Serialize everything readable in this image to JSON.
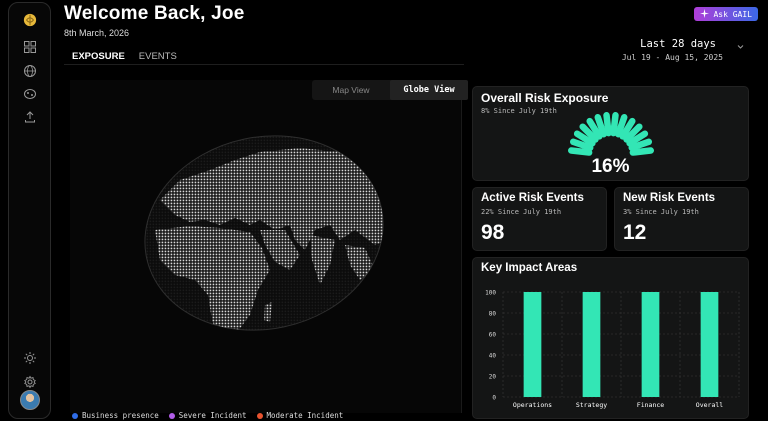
{
  "colors": {
    "accent": "#33e6b5",
    "background": "#000000",
    "card": "#141515"
  },
  "sidebar": {
    "logo_icon": "brain-logo-icon",
    "items": [
      {
        "icon": "grid-icon"
      },
      {
        "icon": "globe-icon"
      },
      {
        "icon": "network-icon"
      },
      {
        "icon": "upload-icon"
      }
    ],
    "bottom_items": [
      {
        "icon": "sun-icon"
      },
      {
        "icon": "gear-icon"
      }
    ]
  },
  "header": {
    "title": "Welcome Back, Joe",
    "date": "8th March, 2026",
    "ask_label": "Ask GAIL",
    "ask_icon": "sparkle-icon",
    "tabs": [
      {
        "label": "EXPOSURE",
        "active": true
      },
      {
        "label": "EVENTS",
        "active": false
      }
    ],
    "period_label": "Last 28 days",
    "period_range": "Jul 19 - Aug 15, 2025"
  },
  "globe": {
    "toggle": [
      {
        "label": "Map View"
      },
      {
        "label": "Globe View"
      }
    ],
    "active_view": "Globe View",
    "legend": [
      {
        "label": "Business presence",
        "color": "#2f6de8"
      },
      {
        "label": "Severe Incident",
        "color": "#b15de8"
      },
      {
        "label": "Moderate Incident",
        "color": "#e8532f"
      }
    ]
  },
  "overall_risk": {
    "title": "Overall Risk Exposure",
    "sub": "8% Since July 19th",
    "value": "16%"
  },
  "active_events": {
    "title": "Active Risk Events",
    "sub": "22% Since July 19th",
    "value": "98"
  },
  "new_events": {
    "title": "New Risk Events",
    "sub": "3% Since July 19th",
    "value": "12"
  },
  "chart_data": {
    "type": "bar",
    "title": "Key Impact Areas",
    "categories": [
      "Operations",
      "Strategy",
      "Finance",
      "Overall"
    ],
    "values": [
      100,
      100,
      100,
      100
    ],
    "ylim": [
      0,
      100
    ],
    "yticks": [
      "0",
      "20",
      "40",
      "60",
      "80",
      "100"
    ],
    "grid": true
  }
}
